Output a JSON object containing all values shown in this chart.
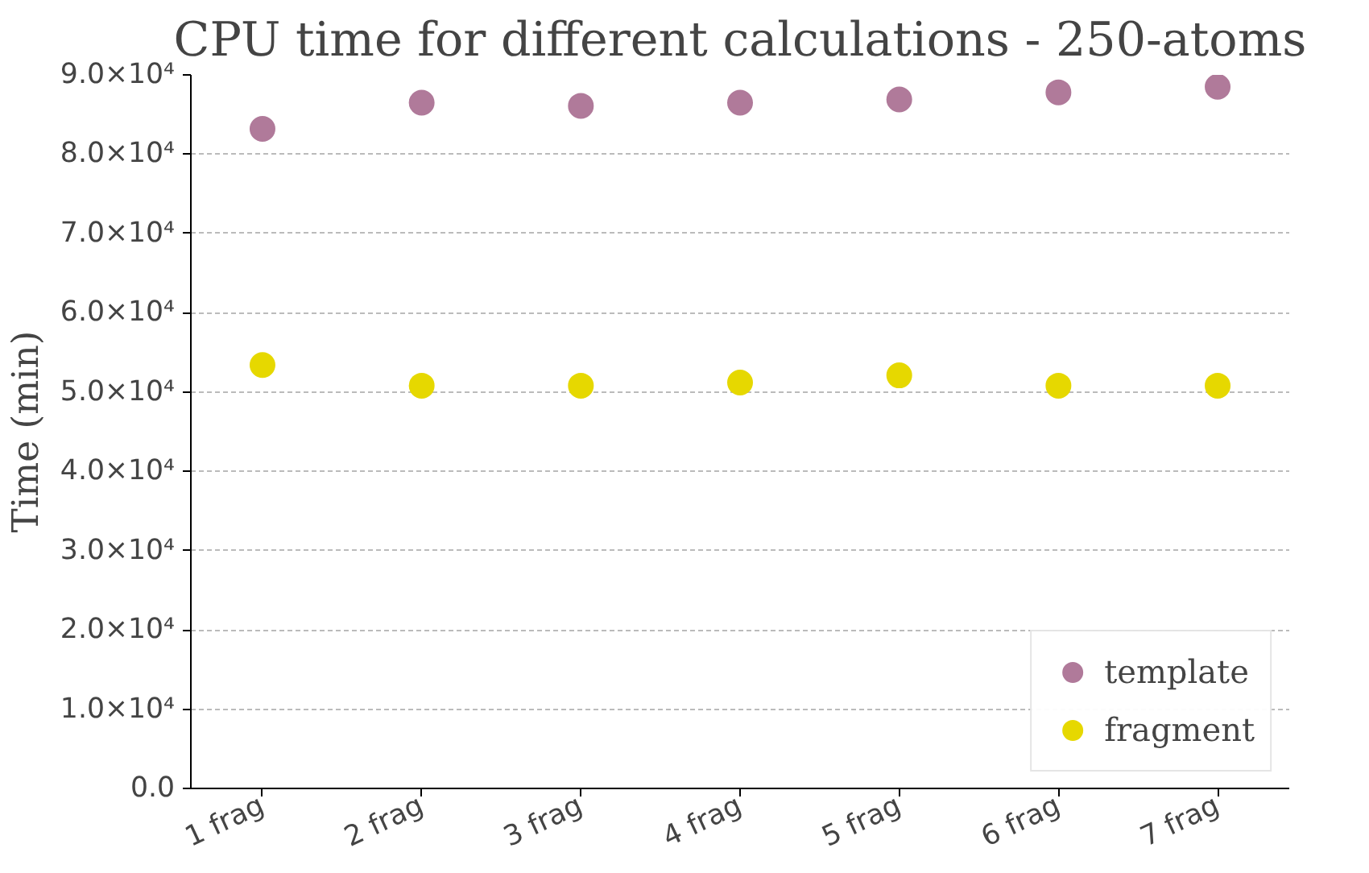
{
  "chart_data": {
    "type": "scatter",
    "title": "CPU time for different calculations - 250-atoms",
    "ylabel": "Time (min)",
    "categories": [
      "1 frag",
      "2 frag",
      "3 frag",
      "4 frag",
      "5 frag",
      "6 frag",
      "7 frag"
    ],
    "series": [
      {
        "name": "template",
        "color": "#b07a9a",
        "values": [
          83200,
          86500,
          86100,
          86500,
          86900,
          87800,
          88500
        ]
      },
      {
        "name": "fragment",
        "color": "#e6d800",
        "values": [
          53400,
          50800,
          50800,
          51200,
          52100,
          50800,
          50800
        ]
      }
    ],
    "ylim": [
      0,
      90000
    ],
    "yticks": [
      {
        "value": 0,
        "label": "0.0"
      },
      {
        "value": 10000,
        "label": "1.0×10⁴"
      },
      {
        "value": 20000,
        "label": "2.0×10⁴"
      },
      {
        "value": 30000,
        "label": "3.0×10⁴"
      },
      {
        "value": 40000,
        "label": "4.0×10⁴"
      },
      {
        "value": 50000,
        "label": "5.0×10⁴"
      },
      {
        "value": 60000,
        "label": "6.0×10⁴"
      },
      {
        "value": 70000,
        "label": "7.0×10⁴"
      },
      {
        "value": 80000,
        "label": "8.0×10⁴"
      },
      {
        "value": 90000,
        "label": "9.0×10⁴"
      }
    ],
    "grid": "y",
    "legend": "bottom right",
    "marker": "circle"
  }
}
